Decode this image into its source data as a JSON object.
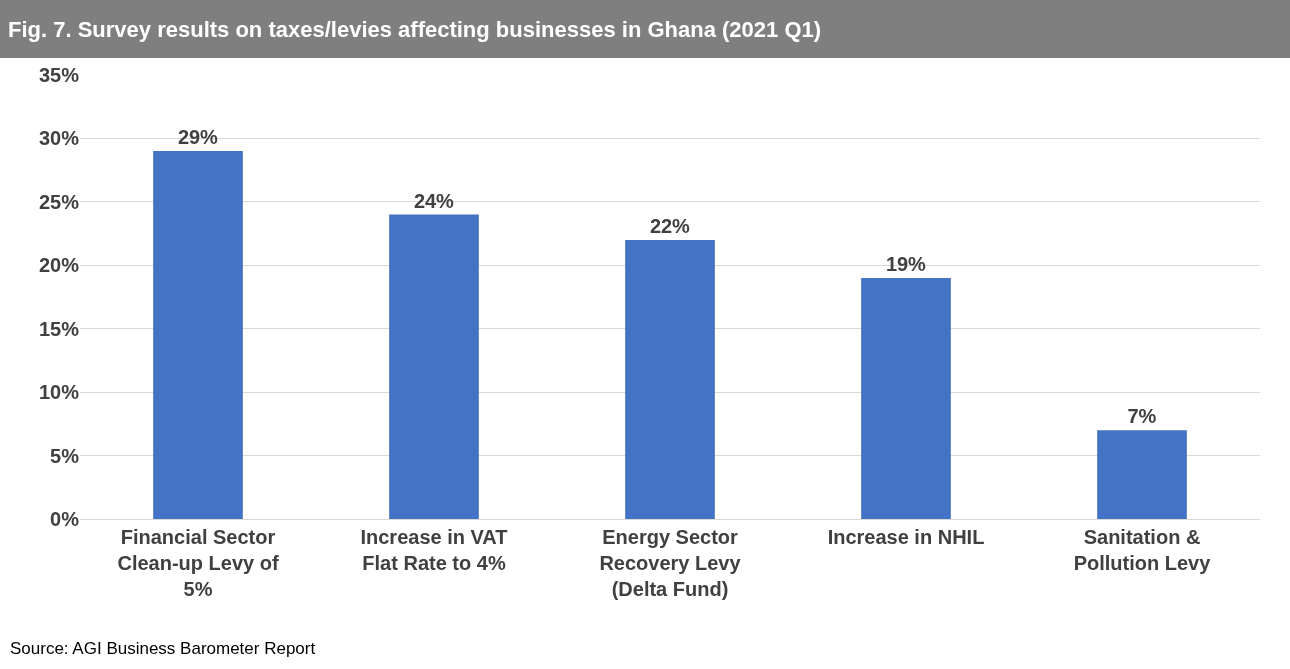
{
  "chart_data": {
    "type": "bar",
    "title": "Fig. 7. Survey results on taxes/levies affecting businesses in Ghana (2021 Q1)",
    "categories": [
      "Financial Sector Clean-up Levy of 5%",
      "Increase in VAT Flat Rate to 4%",
      "Energy Sector Recovery Levy (Delta Fund)",
      "Increase in NHIL",
      "Sanitation & Pollution Levy"
    ],
    "values": [
      29,
      24,
      22,
      19,
      7
    ],
    "value_labels": [
      "29%",
      "24%",
      "22%",
      "19%",
      "7%"
    ],
    "color": "#4472c4",
    "ylim": [
      0,
      35
    ],
    "yticks": [
      {
        "value": 0,
        "label": "0%"
      },
      {
        "value": 5,
        "label": "5%"
      },
      {
        "value": 10,
        "label": "10%"
      },
      {
        "value": 15,
        "label": "15%"
      },
      {
        "value": 20,
        "label": "20%"
      },
      {
        "value": 25,
        "label": "25%"
      },
      {
        "value": 30,
        "label": "30%"
      },
      {
        "value": 35,
        "label": "35%"
      }
    ],
    "grid": "y",
    "legend": false,
    "annotations": [
      "Source: AGI Business Barometer Report"
    ]
  }
}
